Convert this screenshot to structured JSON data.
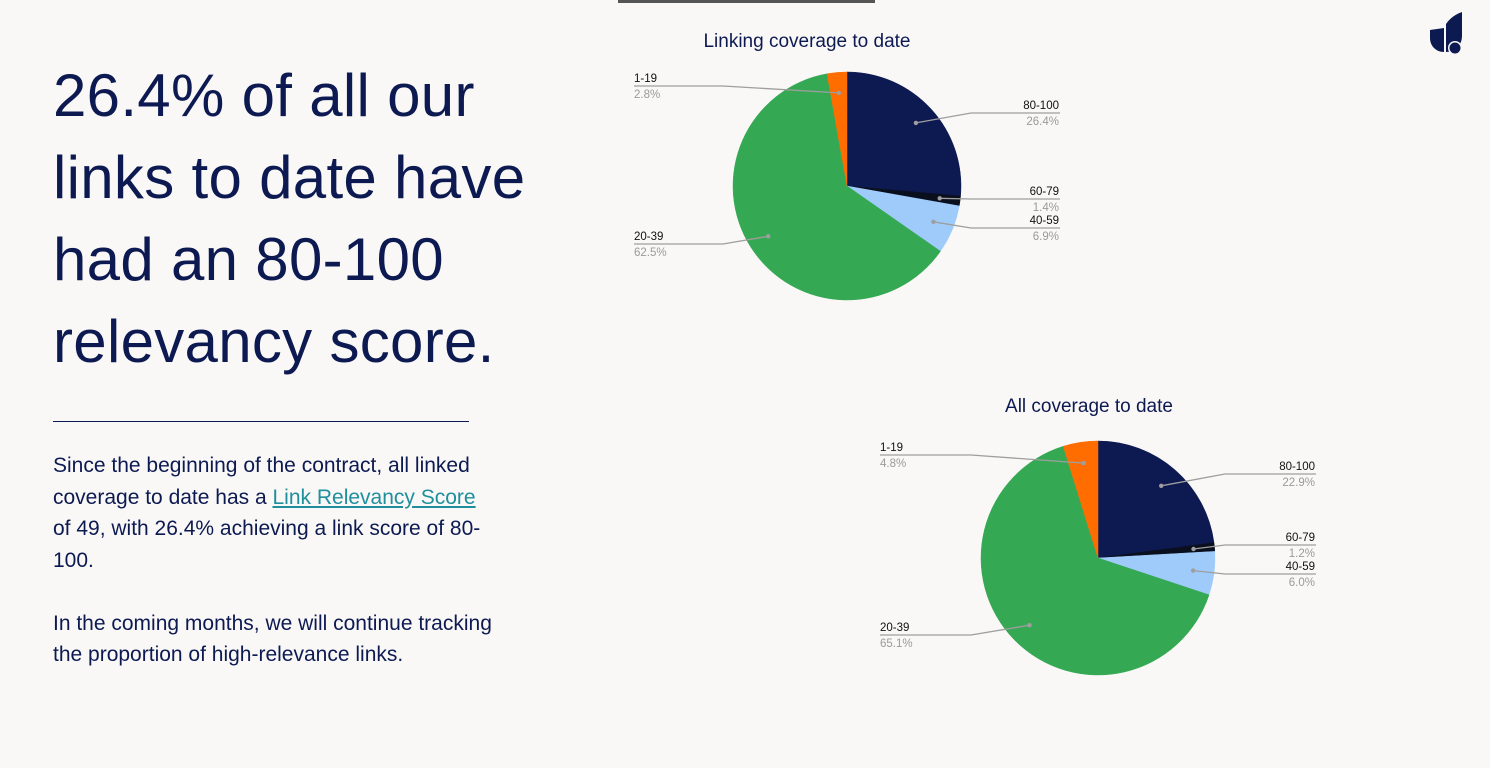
{
  "headline": "26.4% of all our links to date have had an 80-100 relevancy score.",
  "body": {
    "p1_pre": "Since the beginning of the contract, all linked coverage to date has a ",
    "p1_link": "Link Relevancy Score",
    "p1_post": " of 49, with 26.4% achieving a link score of 80-100.",
    "p2": "In the coming months, we will continue tracking the proportion of high-relevance links."
  },
  "colors": {
    "background": "#f9f8f6",
    "text": "#0d1a52",
    "link": "#1f8f9e",
    "slice_80_100": "#0d1a52",
    "slice_60_79": "#0a0f1e",
    "slice_40_59": "#9fcbfb",
    "slice_20_39": "#35a853",
    "slice_1_19": "#ff6d01"
  },
  "logo_icon": "leaf-logo-icon",
  "chart_data": [
    {
      "type": "pie",
      "title": "Linking coverage to date",
      "categories": [
        "80-100",
        "60-79",
        "40-59",
        "20-39",
        "1-19"
      ],
      "values": [
        26.4,
        1.4,
        6.9,
        62.5,
        2.8
      ],
      "value_labels": [
        "26.4%",
        "1.4%",
        "6.9%",
        "62.5%",
        "2.8%"
      ]
    },
    {
      "type": "pie",
      "title": "All coverage to date",
      "categories": [
        "80-100",
        "60-79",
        "40-59",
        "20-39",
        "1-19"
      ],
      "values": [
        22.9,
        1.2,
        6.0,
        65.1,
        4.8
      ],
      "value_labels": [
        "22.9%",
        "1.2%",
        "6.0%",
        "65.1%",
        "4.8%"
      ]
    }
  ]
}
